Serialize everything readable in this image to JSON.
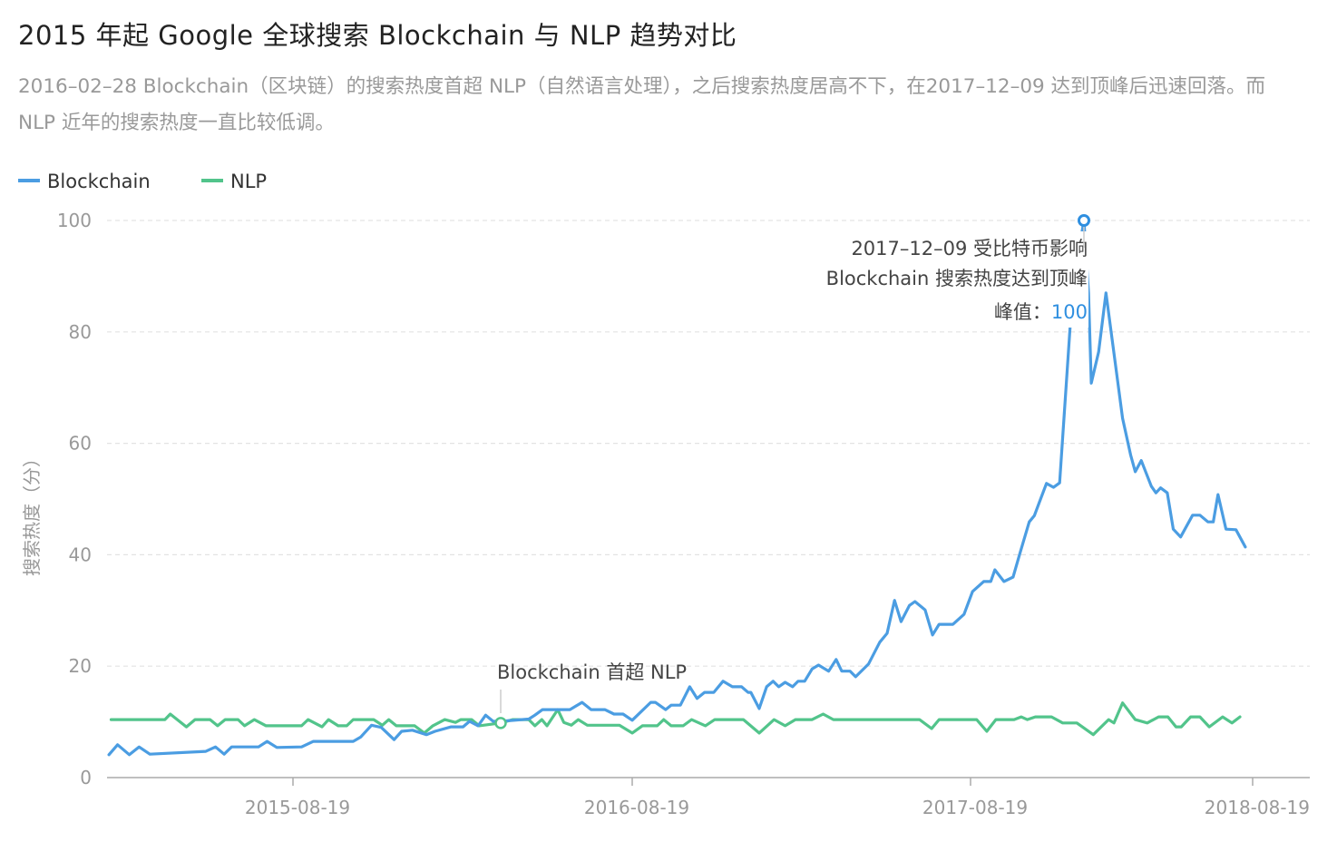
{
  "header": {
    "title": "2015 年起 Google 全球搜索 Blockchain 与 NLP 趋势对比",
    "description": "2016–02–28 Blockchain（区块链）的搜索热度首超 NLP（自然语言处理），之后搜索热度居高不下，在2017–12–09 达到顶峰后迅速回落。而 NLP 近年的搜索热度一直比较低调。"
  },
  "chart_data": {
    "type": "line",
    "title": "",
    "xlabel": "",
    "ylabel": "搜索热度（分）",
    "ylim": [
      0,
      100
    ],
    "yticks": [
      "0",
      "20",
      "40",
      "60",
      "80",
      "100"
    ],
    "xticks": [
      "2015-08-19",
      "2016-08-19",
      "2017-08-19",
      "2018-08-19"
    ],
    "grid": "horizontal dashed",
    "legend_position": "top-left",
    "series": [
      {
        "name": "Blockchain",
        "color": "#4b9de2",
        "points": [
          [
            "2015-03-01",
            4.1
          ],
          [
            "2015-03-09",
            5.9
          ],
          [
            "2015-03-20",
            4.1
          ],
          [
            "2015-03-29",
            5.5
          ],
          [
            "2015-04-08",
            4.2
          ],
          [
            "2015-05-30",
            4.7
          ],
          [
            "2015-06-08",
            5.5
          ],
          [
            "2015-06-16",
            4.2
          ],
          [
            "2015-06-23",
            5.5
          ],
          [
            "2015-07-18",
            5.5
          ],
          [
            "2015-07-26",
            6.5
          ],
          [
            "2015-08-04",
            5.4
          ],
          [
            "2015-08-27",
            5.5
          ],
          [
            "2015-09-07",
            6.5
          ],
          [
            "2015-10-14",
            6.5
          ],
          [
            "2015-10-21",
            7.3
          ],
          [
            "2015-10-31",
            9.4
          ],
          [
            "2015-11-09",
            9.0
          ],
          [
            "2015-11-21",
            6.8
          ],
          [
            "2015-11-28",
            8.3
          ],
          [
            "2015-12-08",
            8.5
          ],
          [
            "2015-12-21",
            7.7
          ],
          [
            "2015-12-29",
            8.3
          ],
          [
            "2016-01-13",
            9.1
          ],
          [
            "2016-01-24",
            9.1
          ],
          [
            "2016-01-30",
            10.1
          ],
          [
            "2016-02-07",
            9.3
          ],
          [
            "2016-02-14",
            11.2
          ],
          [
            "2016-02-21",
            10.1
          ],
          [
            "2016-02-28",
            10.1
          ],
          [
            "2016-04-05",
            10.5
          ],
          [
            "2016-04-13",
            11.2
          ],
          [
            "2016-04-23",
            12.2
          ],
          [
            "2016-05-29",
            12.2
          ],
          [
            "2016-06-14",
            13.5
          ],
          [
            "2016-06-26",
            12.2
          ],
          [
            "2016-07-14",
            12.2
          ],
          [
            "2016-07-26",
            11.4
          ],
          [
            "2016-08-07",
            11.4
          ],
          [
            "2016-08-19",
            10.3
          ],
          [
            "2016-09-08",
            13.5
          ],
          [
            "2016-09-13",
            13.5
          ],
          [
            "2016-09-24",
            12.2
          ],
          [
            "2016-09-30",
            13.0
          ],
          [
            "2016-10-10",
            13.0
          ],
          [
            "2016-10-20",
            16.3
          ],
          [
            "2016-10-28",
            14.2
          ],
          [
            "2016-11-05",
            15.3
          ],
          [
            "2016-11-15",
            15.3
          ],
          [
            "2016-11-25",
            17.3
          ],
          [
            "2016-12-05",
            16.3
          ],
          [
            "2016-12-15",
            16.3
          ],
          [
            "2016-12-22",
            15.3
          ],
          [
            "2016-12-25",
            15.3
          ],
          [
            "2017-01-03",
            12.4
          ],
          [
            "2017-01-11",
            16.3
          ],
          [
            "2017-01-18",
            17.3
          ],
          [
            "2017-01-24",
            16.3
          ],
          [
            "2017-01-31",
            17.1
          ],
          [
            "2017-02-08",
            16.3
          ],
          [
            "2017-02-14",
            17.3
          ],
          [
            "2017-02-21",
            17.3
          ],
          [
            "2017-03-01",
            19.5
          ],
          [
            "2017-03-08",
            20.2
          ],
          [
            "2017-03-19",
            19.1
          ],
          [
            "2017-03-27",
            21.2
          ],
          [
            "2017-04-02",
            19.1
          ],
          [
            "2017-04-11",
            19.1
          ],
          [
            "2017-04-17",
            18.1
          ],
          [
            "2017-05-01",
            20.4
          ],
          [
            "2017-05-13",
            24.3
          ],
          [
            "2017-05-21",
            25.9
          ],
          [
            "2017-05-29",
            31.8
          ],
          [
            "2017-06-05",
            28.0
          ],
          [
            "2017-06-14",
            30.9
          ],
          [
            "2017-06-20",
            31.6
          ],
          [
            "2017-07-01",
            30.1
          ],
          [
            "2017-07-09",
            25.6
          ],
          [
            "2017-07-16",
            27.5
          ],
          [
            "2017-07-31",
            27.5
          ],
          [
            "2017-08-12",
            29.3
          ],
          [
            "2017-08-21",
            33.4
          ],
          [
            "2017-09-01",
            35.2
          ],
          [
            "2017-09-08",
            35.2
          ],
          [
            "2017-09-12",
            37.3
          ],
          [
            "2017-09-21",
            35.2
          ],
          [
            "2017-09-30",
            36.0
          ],
          [
            "2017-10-07",
            40.4
          ],
          [
            "2017-10-16",
            45.9
          ],
          [
            "2017-10-21",
            47.0
          ],
          [
            "2017-11-02",
            52.8
          ],
          [
            "2017-11-09",
            52.1
          ],
          [
            "2017-11-15",
            52.9
          ],
          [
            "2017-11-28",
            88
          ],
          [
            "2017-12-09",
            100
          ],
          [
            "2017-12-16",
            87
          ],
          [
            "2017-12-20",
            70.8
          ],
          [
            "2017-12-31",
            76.4
          ],
          [
            "2018-01-11",
            87
          ],
          [
            "2018-02-05",
            64.5
          ],
          [
            "2018-02-17",
            57.9
          ],
          [
            "2018-02-24",
            54.9
          ],
          [
            "2018-03-05",
            56.9
          ],
          [
            "2018-03-20",
            52.3
          ],
          [
            "2018-03-27",
            51.1
          ],
          [
            "2018-04-03",
            52.0
          ],
          [
            "2018-04-13",
            51.1
          ],
          [
            "2018-04-22",
            44.6
          ],
          [
            "2018-05-03",
            43.2
          ],
          [
            "2018-05-21",
            47.1
          ],
          [
            "2018-06-01",
            47.1
          ],
          [
            "2018-06-13",
            45.9
          ],
          [
            "2018-06-21",
            45.9
          ],
          [
            "2018-06-28",
            50.8
          ],
          [
            "2018-07-10",
            44.6
          ],
          [
            "2018-07-25",
            44.5
          ],
          [
            "2018-08-08",
            41.4
          ]
        ]
      },
      {
        "name": "NLP",
        "color": "#52c48b",
        "points": [
          [
            "2015-03-03",
            10.4
          ],
          [
            "2015-04-22",
            10.4
          ],
          [
            "2015-04-27",
            11.4
          ],
          [
            "2015-05-12",
            9.1
          ],
          [
            "2015-05-20",
            10.4
          ],
          [
            "2015-06-03",
            10.4
          ],
          [
            "2015-06-10",
            9.3
          ],
          [
            "2015-06-17",
            10.4
          ],
          [
            "2015-06-29",
            10.4
          ],
          [
            "2015-07-05",
            9.3
          ],
          [
            "2015-07-14",
            10.4
          ],
          [
            "2015-07-25",
            9.3
          ],
          [
            "2015-08-27",
            9.3
          ],
          [
            "2015-09-02",
            10.4
          ],
          [
            "2015-09-15",
            9.1
          ],
          [
            "2015-09-21",
            10.4
          ],
          [
            "2015-09-30",
            9.3
          ],
          [
            "2015-10-08",
            9.3
          ],
          [
            "2015-10-14",
            10.4
          ],
          [
            "2015-11-02",
            10.4
          ],
          [
            "2015-11-10",
            9.4
          ],
          [
            "2015-11-16",
            10.4
          ],
          [
            "2015-11-23",
            9.3
          ],
          [
            "2015-12-10",
            9.3
          ],
          [
            "2015-12-19",
            8.0
          ],
          [
            "2015-12-27",
            9.3
          ],
          [
            "2016-01-07",
            10.4
          ],
          [
            "2016-01-17",
            9.9
          ],
          [
            "2016-01-22",
            10.4
          ],
          [
            "2016-02-01",
            10.4
          ],
          [
            "2016-02-08",
            9.3
          ],
          [
            "2016-02-28",
            9.8
          ],
          [
            "2016-03-15",
            10.4
          ],
          [
            "2016-04-05",
            10.4
          ],
          [
            "2016-04-13",
            9.3
          ],
          [
            "2016-04-22",
            10.4
          ],
          [
            "2016-04-29",
            9.3
          ],
          [
            "2016-05-13",
            12.2
          ],
          [
            "2016-05-21",
            9.9
          ],
          [
            "2016-05-31",
            9.4
          ],
          [
            "2016-06-09",
            10.4
          ],
          [
            "2016-06-21",
            9.4
          ],
          [
            "2016-08-02",
            9.4
          ],
          [
            "2016-08-19",
            8.0
          ],
          [
            "2016-08-30",
            9.3
          ],
          [
            "2016-09-15",
            9.3
          ],
          [
            "2016-09-22",
            10.4
          ],
          [
            "2016-09-30",
            9.3
          ],
          [
            "2016-10-13",
            9.3
          ],
          [
            "2016-10-22",
            10.4
          ],
          [
            "2016-11-06",
            9.3
          ],
          [
            "2016-11-16",
            10.4
          ],
          [
            "2016-12-17",
            10.4
          ],
          [
            "2017-01-03",
            8.0
          ],
          [
            "2017-01-19",
            10.4
          ],
          [
            "2017-01-31",
            9.3
          ],
          [
            "2017-02-11",
            10.4
          ],
          [
            "2017-03-01",
            10.4
          ],
          [
            "2017-03-13",
            11.4
          ],
          [
            "2017-03-24",
            10.4
          ],
          [
            "2017-06-25",
            10.4
          ],
          [
            "2017-07-08",
            8.8
          ],
          [
            "2017-07-16",
            10.4
          ],
          [
            "2017-08-25",
            10.4
          ],
          [
            "2017-09-04",
            8.3
          ],
          [
            "2017-09-13",
            10.4
          ],
          [
            "2017-10-01",
            10.4
          ],
          [
            "2017-10-08",
            10.9
          ],
          [
            "2017-10-14",
            10.4
          ],
          [
            "2017-10-22",
            10.9
          ],
          [
            "2017-11-07",
            10.9
          ],
          [
            "2017-11-18",
            9.8
          ],
          [
            "2017-12-02",
            9.8
          ],
          [
            "2017-12-23",
            7.7
          ],
          [
            "2018-01-15",
            10.4
          ],
          [
            "2018-01-23",
            9.8
          ],
          [
            "2018-02-05",
            13.4
          ],
          [
            "2018-02-24",
            10.4
          ],
          [
            "2018-03-14",
            9.8
          ],
          [
            "2018-03-31",
            10.9
          ],
          [
            "2018-04-14",
            10.9
          ],
          [
            "2018-04-26",
            9.1
          ],
          [
            "2018-05-04",
            9.1
          ],
          [
            "2018-05-18",
            10.9
          ],
          [
            "2018-06-01",
            10.9
          ],
          [
            "2018-06-15",
            9.1
          ],
          [
            "2018-07-05",
            10.9
          ],
          [
            "2018-07-19",
            9.8
          ],
          [
            "2018-07-31",
            10.9
          ]
        ]
      }
    ],
    "annotations": [
      {
        "date": "2016-02-28",
        "value": 9.8,
        "series": "NLP",
        "text": "Blockchain 首超 NLP"
      },
      {
        "date": "2017-12-09",
        "value": 100,
        "series": "Blockchain",
        "line1": "2017–12–09 受比特币影响",
        "line2": "Blockchain 搜索热度达到顶峰",
        "peak_label": "峰值：",
        "peak_value": "100"
      }
    ]
  }
}
